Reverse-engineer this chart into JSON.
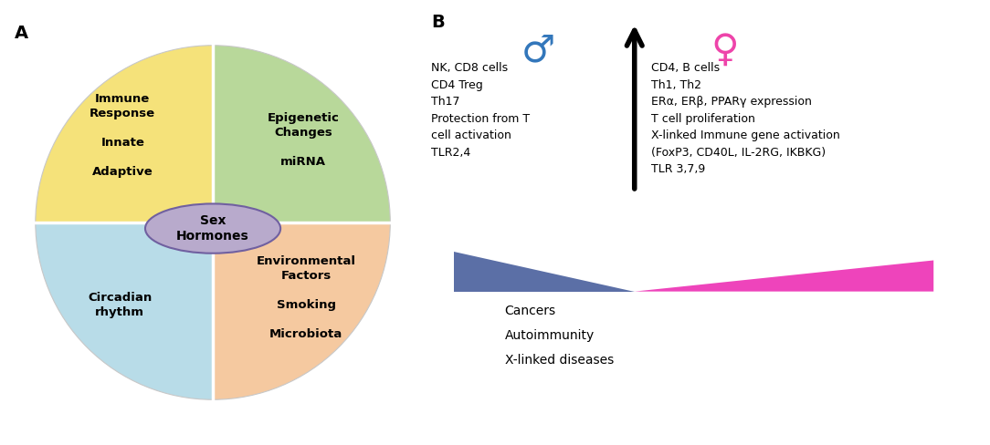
{
  "panel_a": {
    "pie_colors": [
      "#F5E27A",
      "#B8D89A",
      "#F5C9A0",
      "#B8DCE8"
    ],
    "center_ellipse_color": "#B8AACC",
    "center_ellipse_edge": "#7060A0",
    "center_text": "Sex\nHormones",
    "label_A": "A"
  },
  "panel_b": {
    "label_B": "B",
    "male_color": "#3377BB",
    "female_color": "#EE44AA",
    "left_text": "NK, CD8 cells\nCD4 Treg\nTh17\nProtection from T\ncell activation\nTLR2,4",
    "right_text": "CD4, B cells\nTh1, Th2\nERα, ERβ, PPARγ expression\nT cell proliferation\nX-linked Immune gene activation\n(FoxP3, CD40L, IL-2RG, IKBKG)\nTLR 3,7,9",
    "bottom_left_color": "#5B6FA6",
    "bottom_right_color": "#EE44BB",
    "bottom_label1": "Cancers",
    "bottom_label2": "Autoimmunity",
    "bottom_label3": "X-linked diseases"
  }
}
